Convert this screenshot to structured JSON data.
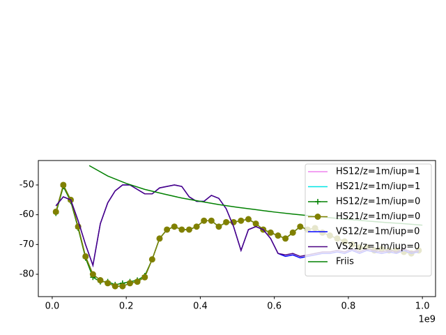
{
  "chart_data": {
    "type": "line",
    "x": [
      10000000,
      30000000,
      50000000,
      70000000,
      90000000,
      110000000,
      130000000,
      150000000,
      170000000,
      190000000,
      210000000,
      230000000,
      250000000,
      270000000,
      290000000,
      310000000,
      330000000,
      350000000,
      370000000,
      390000000,
      410000000,
      430000000,
      450000000,
      470000000,
      490000000,
      510000000,
      530000000,
      550000000,
      570000000,
      590000000,
      610000000,
      630000000,
      650000000,
      670000000,
      690000000,
      710000000,
      730000000,
      750000000,
      770000000,
      790000000,
      810000000,
      830000000,
      850000000,
      870000000,
      890000000,
      910000000,
      930000000,
      950000000,
      970000000,
      990000000
    ],
    "series": [
      {
        "name": "HS12/z=1m/iup=1",
        "color": "#ee82ee",
        "values": [
          -59,
          -50,
          -55,
          -64,
          -74,
          -80,
          -82,
          -83,
          -84,
          -84,
          -83,
          -82.5,
          -81,
          -75,
          -68,
          -65,
          -64,
          -65,
          -65,
          -64,
          -62,
          -62,
          -64,
          -62.5,
          -62.5,
          -62,
          -61.5,
          -63,
          -65,
          -66,
          -67,
          -68,
          -66,
          -64,
          -65,
          -64.5,
          -66,
          -67,
          -68,
          -69,
          -70,
          -71,
          -71,
          -72,
          -71.5,
          -72,
          -72,
          -72.5,
          -73,
          -72
        ]
      },
      {
        "name": "HS21/z=1m/iup=1",
        "color": "#00e5e5",
        "values": [
          -59,
          -50,
          -55,
          -64,
          -74,
          -80,
          -82,
          -83,
          -84,
          -84,
          -83,
          -82.5,
          -81,
          -75,
          -68,
          -65,
          -64,
          -65,
          -65,
          -64,
          -62,
          -62,
          -64,
          -62.5,
          -62.5,
          -62,
          -61.5,
          -63,
          -65,
          -66,
          -67,
          -68,
          -66,
          -64,
          -65,
          -64.5,
          -66,
          -67,
          -68,
          -69,
          -70,
          -71,
          -71,
          -72,
          -71.5,
          -72,
          -72,
          -72.5,
          -73,
          -72
        ]
      },
      {
        "name": "HS12/z=1m/iup=0",
        "color": "#008000",
        "marker": "+",
        "values": [
          -59.5,
          -50.5,
          -55.5,
          -64.5,
          -74.5,
          -81,
          -82.5,
          -82.5,
          -83.5,
          -83,
          -82.5,
          -82,
          -80.5,
          -75,
          -68,
          -65,
          -64,
          -65,
          -65,
          -64,
          -62,
          -62,
          -64,
          -62.5,
          -62.5,
          -62,
          -61.5,
          -63,
          -65,
          -66,
          -67,
          -68,
          -66,
          -64,
          -65,
          -64.5,
          -66,
          -67,
          -68,
          -69,
          -70,
          -71,
          -71,
          -72,
          -71.5,
          -72,
          -72,
          -72.5,
          -73,
          -72
        ]
      },
      {
        "name": "HS21/z=1m/iup=0",
        "color": "#808000",
        "marker": "o",
        "values": [
          -59,
          -50,
          -55,
          -64,
          -74,
          -80,
          -82,
          -83,
          -84,
          -84,
          -83,
          -82.5,
          -81,
          -75,
          -68,
          -65,
          -64,
          -65,
          -65,
          -64,
          -62,
          -62,
          -64,
          -62.5,
          -62.5,
          -62,
          -61.5,
          -63,
          -65,
          -66,
          -67,
          -68,
          -66,
          -64,
          -65,
          -64.5,
          -66,
          -67,
          -68,
          -69,
          -70,
          -71,
          -71,
          -72,
          -71.5,
          -72,
          -72,
          -72.5,
          -73,
          -72
        ]
      },
      {
        "name": "VS12/z=1m/iup=0",
        "color": "#0000ff",
        "values": [
          -57,
          -54,
          -55,
          -62,
          -70,
          -77,
          -63,
          -56,
          -52,
          -50,
          -50,
          -51.5,
          -53,
          -53,
          -51,
          -50.5,
          -50,
          -50.5,
          -54,
          -55.5,
          -55.5,
          -53.5,
          -54.5,
          -58,
          -64,
          -72,
          -65,
          -64,
          -65,
          -68,
          -73,
          -74,
          -73.5,
          -74.5,
          -74,
          -73.5,
          -73,
          -73,
          -72.5,
          -73,
          -72,
          -73,
          -72,
          -72.5,
          -73,
          -72.5,
          -73,
          -72,
          -73,
          -72.5
        ]
      },
      {
        "name": "VS21/z=1m/iup=0",
        "color": "#4b0082",
        "values": [
          -57,
          -54,
          -55,
          -62,
          -70,
          -77,
          -63,
          -56,
          -52,
          -50,
          -50,
          -51.5,
          -53,
          -53,
          -51,
          -50.5,
          -50,
          -50.5,
          -54,
          -55.5,
          -55.5,
          -53.5,
          -54.5,
          -58,
          -64,
          -72,
          -65,
          -64,
          -65,
          -68,
          -73,
          -73.5,
          -73,
          -74,
          -73.5,
          -73,
          -72.5,
          -72.5,
          -72,
          -72.5,
          -71.5,
          -72.5,
          -71.5,
          -72,
          -72.5,
          -72,
          -72.5,
          -71.5,
          -72.5,
          -72
        ]
      },
      {
        "name": "Friis",
        "color": "#008000",
        "x": [
          100000000,
          150000000,
          200000000,
          250000000,
          300000000,
          350000000,
          400000000,
          450000000,
          500000000,
          550000000,
          600000000,
          650000000,
          700000000,
          750000000,
          800000000,
          850000000,
          900000000,
          950000000,
          1000000000
        ],
        "values": [
          -43.5,
          -47,
          -49.5,
          -51.5,
          -53,
          -54.4,
          -55.5,
          -56.6,
          -57.5,
          -58.3,
          -59.1,
          -59.8,
          -60.4,
          -61,
          -61.6,
          -62.1,
          -62.6,
          -63,
          -63.5
        ]
      }
    ],
    "xlim": [
      -37500000,
      1035500000
    ],
    "xticks": [
      {
        "value": 0,
        "label": "0.0"
      },
      {
        "value": 200000000,
        "label": "0.2"
      },
      {
        "value": 400000000,
        "label": "0.4"
      },
      {
        "value": 600000000,
        "label": "0.6"
      },
      {
        "value": 800000000,
        "label": "0.8"
      },
      {
        "value": 1000000000,
        "label": "1.0"
      }
    ],
    "x_offset_label": "1e9",
    "ylim": [
      -87.5,
      -41.8
    ],
    "yticks": [
      -80,
      -70,
      -60,
      -50
    ],
    "legend": "upper right"
  }
}
